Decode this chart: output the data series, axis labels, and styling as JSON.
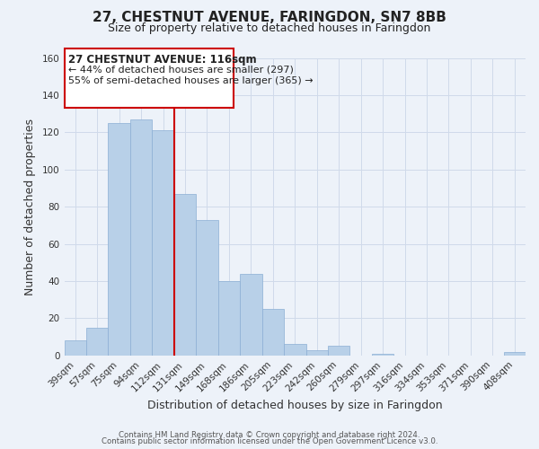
{
  "title": "27, CHESTNUT AVENUE, FARINGDON, SN7 8BB",
  "subtitle": "Size of property relative to detached houses in Faringdon",
  "xlabel": "Distribution of detached houses by size in Faringdon",
  "ylabel": "Number of detached properties",
  "bar_labels": [
    "39sqm",
    "57sqm",
    "75sqm",
    "94sqm",
    "112sqm",
    "131sqm",
    "149sqm",
    "168sqm",
    "186sqm",
    "205sqm",
    "223sqm",
    "242sqm",
    "260sqm",
    "279sqm",
    "297sqm",
    "316sqm",
    "334sqm",
    "353sqm",
    "371sqm",
    "390sqm",
    "408sqm"
  ],
  "bar_values": [
    8,
    15,
    125,
    127,
    121,
    87,
    73,
    40,
    44,
    25,
    6,
    3,
    5,
    0,
    1,
    0,
    0,
    0,
    0,
    0,
    2
  ],
  "bar_color": "#b8d0e8",
  "bar_edge_color": "#8bafd4",
  "annotation_title": "27 CHESTNUT AVENUE: 116sqm",
  "annotation_line1": "← 44% of detached houses are smaller (297)",
  "annotation_line2": "55% of semi-detached houses are larger (365) →",
  "annotation_box_color": "#ffffff",
  "annotation_box_edge": "#cc0000",
  "highlight_line_color": "#cc0000",
  "ylim": [
    0,
    160
  ],
  "yticks": [
    0,
    20,
    40,
    60,
    80,
    100,
    120,
    140,
    160
  ],
  "footer1": "Contains HM Land Registry data © Crown copyright and database right 2024.",
  "footer2": "Contains public sector information licensed under the Open Government Licence v3.0.",
  "bg_color": "#edf2f9",
  "grid_color": "#d0daea",
  "title_fontsize": 11,
  "subtitle_fontsize": 9,
  "axis_label_fontsize": 9,
  "tick_fontsize": 7.5,
  "annotation_title_fontsize": 8.5,
  "annotation_text_fontsize": 8
}
